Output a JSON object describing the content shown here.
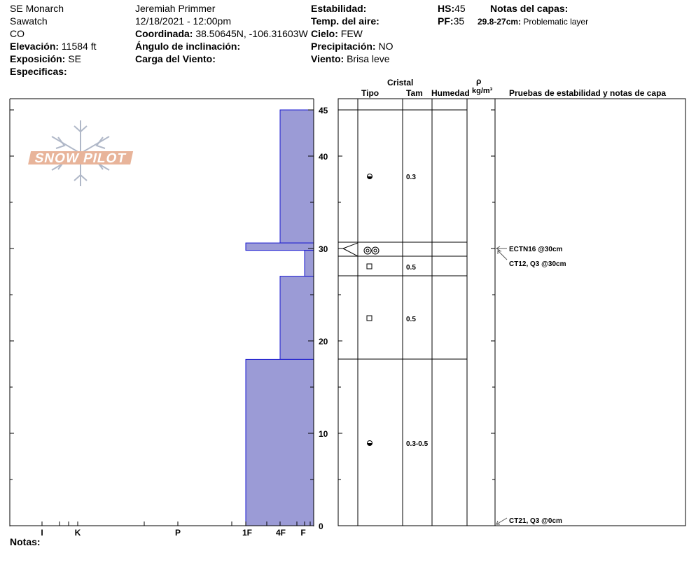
{
  "header": {
    "location": "SE Monarch",
    "range": "Sawatch",
    "state": "CO",
    "elevation_label": "Elevación:",
    "elevation_value": "11584 ft",
    "aspect_label": "Exposición:",
    "aspect_value": "SE",
    "specifics_label": "Especificas:",
    "observer": "Jeremiah Primmer",
    "datetime": "12/18/2021 - 12:00pm",
    "coord_label": "Coordinada:",
    "coord_value": "38.50645N, -106.31603W",
    "slope_label": "Ángulo de inclinación:",
    "wind_load_label": "Carga del Viento:",
    "stability_label": "Estabilidad:",
    "air_temp_label": "Temp. del aire:",
    "sky_label": "Cielo:",
    "sky_value": "FEW",
    "precip_label": "Precipitación:",
    "precip_value": "NO",
    "wind_label": "Viento:",
    "wind_value": "Brisa leve",
    "hs_label": "HS:",
    "hs_value": "45",
    "pf_label": "PF:",
    "pf_value": "35",
    "layer_notes_label": "Notas del capas:",
    "layer_note_range": "29.8-27cm:",
    "layer_note_text": "Problematic layer"
  },
  "logo": {
    "text": "SNOW PILOT"
  },
  "columns": {
    "crystal": "Cristal",
    "type": "Tipo",
    "size": "Tam",
    "moisture": "Humedad",
    "rho": "ρ",
    "density_unit": "kg/m³",
    "tests": "Pruebas de estabilidad y notas de capa"
  },
  "hardness_axis": {
    "labels": [
      "I",
      "K",
      "P",
      "1F",
      "4F",
      "F"
    ]
  },
  "depth_axis": {
    "min": 0,
    "max": 45,
    "labels": [
      "45",
      "40",
      "30",
      "20",
      "10",
      "0"
    ],
    "label_values": [
      45,
      40,
      30,
      20,
      10,
      0
    ]
  },
  "chart_data": {
    "type": "snow_profile",
    "depth_unit": "cm",
    "height_of_snow": 45,
    "hardness_scale": [
      "F",
      "4F",
      "1F",
      "P",
      "K",
      "I"
    ],
    "layers": [
      {
        "top": 45,
        "bottom": 30.6,
        "hardness": "4F",
        "grain": "rounded",
        "size": "0.3"
      },
      {
        "top": 30.6,
        "bottom": 29.8,
        "hardness": "1F",
        "grain": "surface hoar",
        "size": ""
      },
      {
        "top": 29.8,
        "bottom": 27,
        "hardness": "F",
        "grain": "faceted",
        "size": "0.5"
      },
      {
        "top": 27,
        "bottom": 18,
        "hardness": "4F",
        "grain": "faceted",
        "size": "0.5"
      },
      {
        "top": 18,
        "bottom": 0,
        "hardness": "1F",
        "grain": "rounded",
        "size": "0.3-0.5"
      }
    ],
    "tests": [
      {
        "label": "ECTN16 @30cm",
        "depth": 30
      },
      {
        "label": "CT12, Q3 @30cm",
        "depth": 30
      },
      {
        "label": "CT21, Q3 @0cm",
        "depth": 0
      }
    ]
  },
  "notes": {
    "label": "Notas:"
  },
  "colors": {
    "layer_fill": "#9b9bd6",
    "layer_stroke": "#1a1ad0",
    "logo_fill": "#e8b49a"
  }
}
